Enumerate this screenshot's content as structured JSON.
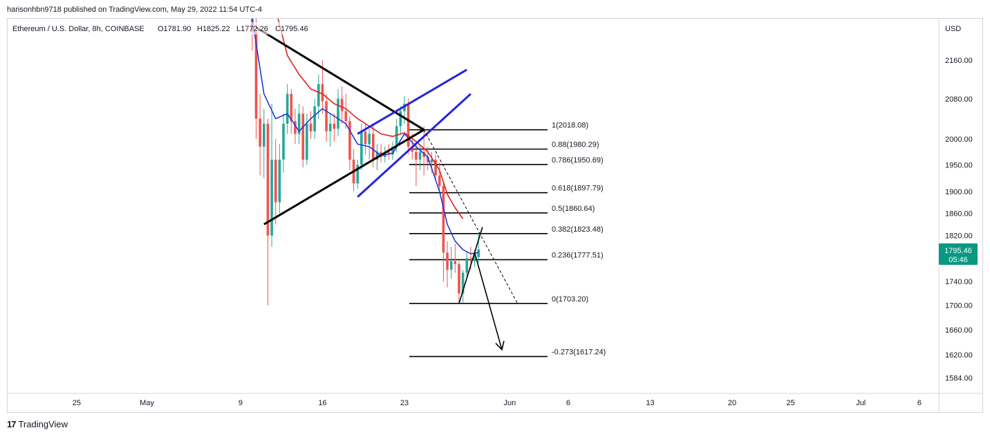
{
  "header": {
    "published_line": "harisonhbn9718 published on TradingView.com, May 29, 2022 11:54 UTC-4"
  },
  "footer": {
    "logo_text": "TradingView"
  },
  "colors": {
    "up_candle": "#26a69a",
    "down_candle": "#ef5350",
    "price_badge": "#089981",
    "ema_fast": "#1e3bd6",
    "ema_slow": "#e01f1f",
    "triangle": "#000000",
    "channel": "#2424e0",
    "fib": "#000000"
  },
  "chart_data": {
    "type": "candlestick",
    "symbol_legend": {
      "name": "Ethereum / U.S. Dollar, 8h, COINBASE",
      "open": "O1781.90",
      "high": "H1825.22",
      "low": "L1772.26",
      "close": "C1795.46"
    },
    "currency_label": "USD",
    "y_axis": {
      "scale": "log",
      "range": [
        1560,
        2230
      ],
      "ticks": [
        "2160.00",
        "2080.00",
        "2000.00",
        "1950.00",
        "1900.00",
        "1860.00",
        "1820.00",
        "1740.00",
        "1700.00",
        "1660.00",
        "1620.00",
        "1584.00"
      ]
    },
    "x_axis": {
      "ticks": [
        {
          "label": "25",
          "date": "2022-04-25"
        },
        {
          "label": "May",
          "date": "2022-05-01"
        },
        {
          "label": "9",
          "date": "2022-05-09"
        },
        {
          "label": "16",
          "date": "2022-05-16"
        },
        {
          "label": "23",
          "date": "2022-05-23"
        },
        {
          "label": "Jun",
          "date": "2022-06-01"
        },
        {
          "label": "6",
          "date": "2022-06-06"
        },
        {
          "label": "13",
          "date": "2022-06-13"
        },
        {
          "label": "20",
          "date": "2022-06-20"
        },
        {
          "label": "25",
          "date": "2022-06-25"
        },
        {
          "label": "Jul",
          "date": "2022-07-01"
        },
        {
          "label": "6",
          "date": "2022-07-06"
        }
      ]
    },
    "last_price": {
      "value": "1795.46",
      "countdown": "05:46"
    },
    "candles": [
      {
        "t": "2022-05-10 00:00",
        "o": 2300,
        "h": 2450,
        "l": 2180,
        "c": 2220
      },
      {
        "t": "2022-05-10 08:00",
        "o": 2220,
        "h": 2250,
        "l": 2000,
        "c": 2040
      },
      {
        "t": "2022-05-10 16:00",
        "o": 2040,
        "h": 2090,
        "l": 1930,
        "c": 1985
      },
      {
        "t": "2022-05-11 00:00",
        "o": 1985,
        "h": 2060,
        "l": 1925,
        "c": 2030
      },
      {
        "t": "2022-05-11 08:00",
        "o": 2030,
        "h": 2040,
        "l": 1700,
        "c": 1820
      },
      {
        "t": "2022-05-11 16:00",
        "o": 1820,
        "h": 2070,
        "l": 1800,
        "c": 1960
      },
      {
        "t": "2022-05-12 00:00",
        "o": 1960,
        "h": 2000,
        "l": 1840,
        "c": 1880
      },
      {
        "t": "2022-05-12 08:00",
        "o": 1880,
        "h": 1990,
        "l": 1860,
        "c": 1960
      },
      {
        "t": "2022-05-12 16:00",
        "o": 1960,
        "h": 2050,
        "l": 1935,
        "c": 2030
      },
      {
        "t": "2022-05-13 00:00",
        "o": 2030,
        "h": 2110,
        "l": 2010,
        "c": 2090
      },
      {
        "t": "2022-05-13 08:00",
        "o": 2090,
        "h": 2100,
        "l": 2010,
        "c": 2035
      },
      {
        "t": "2022-05-13 16:00",
        "o": 2035,
        "h": 2060,
        "l": 1990,
        "c": 2010
      },
      {
        "t": "2022-05-14 00:00",
        "o": 2010,
        "h": 2070,
        "l": 1990,
        "c": 2050
      },
      {
        "t": "2022-05-14 08:00",
        "o": 2050,
        "h": 2065,
        "l": 1945,
        "c": 1960
      },
      {
        "t": "2022-05-14 16:00",
        "o": 1960,
        "h": 2050,
        "l": 1950,
        "c": 2030
      },
      {
        "t": "2022-05-15 00:00",
        "o": 2030,
        "h": 2055,
        "l": 2000,
        "c": 2015
      },
      {
        "t": "2022-05-15 08:00",
        "o": 2015,
        "h": 2080,
        "l": 2000,
        "c": 2065
      },
      {
        "t": "2022-05-15 16:00",
        "o": 2065,
        "h": 2130,
        "l": 2040,
        "c": 2110
      },
      {
        "t": "2022-05-16 00:00",
        "o": 2110,
        "h": 2160,
        "l": 2050,
        "c": 2075
      },
      {
        "t": "2022-05-16 08:00",
        "o": 2075,
        "h": 2090,
        "l": 1995,
        "c": 2015
      },
      {
        "t": "2022-05-16 16:00",
        "o": 2015,
        "h": 2050,
        "l": 1985,
        "c": 2030
      },
      {
        "t": "2022-05-17 00:00",
        "o": 2030,
        "h": 2050,
        "l": 1995,
        "c": 2020
      },
      {
        "t": "2022-05-17 08:00",
        "o": 2020,
        "h": 2100,
        "l": 2005,
        "c": 2080
      },
      {
        "t": "2022-05-17 16:00",
        "o": 2080,
        "h": 2105,
        "l": 2030,
        "c": 2055
      },
      {
        "t": "2022-05-18 00:00",
        "o": 2055,
        "h": 2090,
        "l": 2020,
        "c": 2035
      },
      {
        "t": "2022-05-18 08:00",
        "o": 2035,
        "h": 2045,
        "l": 1940,
        "c": 1960
      },
      {
        "t": "2022-05-18 16:00",
        "o": 1960,
        "h": 1980,
        "l": 1900,
        "c": 1915
      },
      {
        "t": "2022-05-19 00:00",
        "o": 1915,
        "h": 1960,
        "l": 1905,
        "c": 1950
      },
      {
        "t": "2022-05-19 08:00",
        "o": 1950,
        "h": 2030,
        "l": 1940,
        "c": 2015
      },
      {
        "t": "2022-05-19 16:00",
        "o": 2015,
        "h": 2030,
        "l": 1970,
        "c": 1990
      },
      {
        "t": "2022-05-20 00:00",
        "o": 1990,
        "h": 2020,
        "l": 1960,
        "c": 2010
      },
      {
        "t": "2022-05-20 08:00",
        "o": 2010,
        "h": 2030,
        "l": 1945,
        "c": 1960
      },
      {
        "t": "2022-05-20 16:00",
        "o": 1960,
        "h": 1990,
        "l": 1940,
        "c": 1975
      },
      {
        "t": "2022-05-21 00:00",
        "o": 1975,
        "h": 1990,
        "l": 1955,
        "c": 1965
      },
      {
        "t": "2022-05-21 08:00",
        "o": 1965,
        "h": 1985,
        "l": 1955,
        "c": 1975
      },
      {
        "t": "2022-05-21 16:00",
        "o": 1975,
        "h": 1990,
        "l": 1960,
        "c": 1970
      },
      {
        "t": "2022-05-22 00:00",
        "o": 1970,
        "h": 1995,
        "l": 1960,
        "c": 1985
      },
      {
        "t": "2022-05-22 08:00",
        "o": 1985,
        "h": 2040,
        "l": 1975,
        "c": 2025
      },
      {
        "t": "2022-05-22 16:00",
        "o": 2025,
        "h": 2065,
        "l": 2010,
        "c": 2055
      },
      {
        "t": "2022-05-23 00:00",
        "o": 2055,
        "h": 2085,
        "l": 2030,
        "c": 2070
      },
      {
        "t": "2022-05-23 08:00",
        "o": 2070,
        "h": 2080,
        "l": 1970,
        "c": 1985
      },
      {
        "t": "2022-05-23 16:00",
        "o": 1985,
        "h": 2010,
        "l": 1960,
        "c": 1975
      },
      {
        "t": "2022-05-24 00:00",
        "o": 1975,
        "h": 1990,
        "l": 1910,
        "c": 1960
      },
      {
        "t": "2022-05-24 08:00",
        "o": 1960,
        "h": 1990,
        "l": 1940,
        "c": 1975
      },
      {
        "t": "2022-05-24 16:00",
        "o": 1975,
        "h": 2025,
        "l": 1930,
        "c": 1965
      },
      {
        "t": "2022-05-25 00:00",
        "o": 1965,
        "h": 1985,
        "l": 1940,
        "c": 1955
      },
      {
        "t": "2022-05-25 08:00",
        "o": 1955,
        "h": 1975,
        "l": 1935,
        "c": 1960
      },
      {
        "t": "2022-05-25 16:00",
        "o": 1960,
        "h": 1970,
        "l": 1920,
        "c": 1930
      },
      {
        "t": "2022-05-26 00:00",
        "o": 1930,
        "h": 1955,
        "l": 1900,
        "c": 1910
      },
      {
        "t": "2022-05-26 08:00",
        "o": 1910,
        "h": 1920,
        "l": 1740,
        "c": 1790
      },
      {
        "t": "2022-05-26 16:00",
        "o": 1790,
        "h": 1810,
        "l": 1730,
        "c": 1760
      },
      {
        "t": "2022-05-27 00:00",
        "o": 1760,
        "h": 1800,
        "l": 1745,
        "c": 1775
      },
      {
        "t": "2022-05-27 08:00",
        "o": 1775,
        "h": 1805,
        "l": 1755,
        "c": 1770
      },
      {
        "t": "2022-05-27 16:00",
        "o": 1770,
        "h": 1775,
        "l": 1705,
        "c": 1720
      },
      {
        "t": "2022-05-28 00:00",
        "o": 1720,
        "h": 1760,
        "l": 1705,
        "c": 1755
      },
      {
        "t": "2022-05-28 08:00",
        "o": 1755,
        "h": 1790,
        "l": 1745,
        "c": 1780
      },
      {
        "t": "2022-05-28 16:00",
        "o": 1780,
        "h": 1800,
        "l": 1760,
        "c": 1775
      },
      {
        "t": "2022-05-29 00:00",
        "o": 1775,
        "h": 1795,
        "l": 1765,
        "c": 1790
      },
      {
        "t": "2022-05-29 08:00",
        "o": 1781.9,
        "h": 1825.22,
        "l": 1772.26,
        "c": 1795.46
      }
    ],
    "moving_averages": [
      {
        "color": "#1e3bd6",
        "points": [
          {
            "t": "2022-05-10 00:00",
            "v": 2250
          },
          {
            "t": "2022-05-11 00:00",
            "v": 2090
          },
          {
            "t": "2022-05-12 00:00",
            "v": 2040
          },
          {
            "t": "2022-05-13 00:00",
            "v": 2050
          },
          {
            "t": "2022-05-14 00:00",
            "v": 2015
          },
          {
            "t": "2022-05-15 00:00",
            "v": 2040
          },
          {
            "t": "2022-05-16 00:00",
            "v": 2060
          },
          {
            "t": "2022-05-17 00:00",
            "v": 2045
          },
          {
            "t": "2022-05-18 00:00",
            "v": 2030
          },
          {
            "t": "2022-05-19 00:00",
            "v": 1990
          },
          {
            "t": "2022-05-20 00:00",
            "v": 1985
          },
          {
            "t": "2022-05-21 00:00",
            "v": 1968
          },
          {
            "t": "2022-05-22 00:00",
            "v": 1972
          },
          {
            "t": "2022-05-23 00:00",
            "v": 2010
          },
          {
            "t": "2022-05-24 00:00",
            "v": 1985
          },
          {
            "t": "2022-05-25 00:00",
            "v": 1965
          },
          {
            "t": "2022-05-26 00:00",
            "v": 1900
          },
          {
            "t": "2022-05-26 16:00",
            "v": 1840
          },
          {
            "t": "2022-05-27 08:00",
            "v": 1810
          },
          {
            "t": "2022-05-28 00:00",
            "v": 1795
          },
          {
            "t": "2022-05-28 16:00",
            "v": 1788
          },
          {
            "t": "2022-05-29 08:00",
            "v": 1790
          }
        ]
      },
      {
        "color": "#e01f1f",
        "points": [
          {
            "t": "2022-05-11 00:00",
            "v": 2440
          },
          {
            "t": "2022-05-12 00:00",
            "v": 2270
          },
          {
            "t": "2022-05-13 00:00",
            "v": 2170
          },
          {
            "t": "2022-05-14 00:00",
            "v": 2130
          },
          {
            "t": "2022-05-15 00:00",
            "v": 2100
          },
          {
            "t": "2022-05-16 00:00",
            "v": 2090
          },
          {
            "t": "2022-05-17 00:00",
            "v": 2070
          },
          {
            "t": "2022-05-18 00:00",
            "v": 2060
          },
          {
            "t": "2022-05-19 00:00",
            "v": 2040
          },
          {
            "t": "2022-05-20 00:00",
            "v": 2025
          },
          {
            "t": "2022-05-21 00:00",
            "v": 2010
          },
          {
            "t": "2022-05-22 00:00",
            "v": 2005
          },
          {
            "t": "2022-05-23 00:00",
            "v": 2012
          },
          {
            "t": "2022-05-24 00:00",
            "v": 1995
          },
          {
            "t": "2022-05-25 00:00",
            "v": 1975
          },
          {
            "t": "2022-05-26 00:00",
            "v": 1940
          },
          {
            "t": "2022-05-26 16:00",
            "v": 1895
          },
          {
            "t": "2022-05-27 08:00",
            "v": 1870
          },
          {
            "t": "2022-05-28 00:00",
            "v": 1850
          }
        ]
      }
    ],
    "fibonacci": {
      "levels": [
        {
          "ratio": 1,
          "price": 2018.08,
          "label": "1(2018.08)"
        },
        {
          "ratio": 0.88,
          "price": 1980.29,
          "label": "0.88(1980.29)"
        },
        {
          "ratio": 0.786,
          "price": 1950.69,
          "label": "0.786(1950.69)"
        },
        {
          "ratio": 0.618,
          "price": 1897.79,
          "label": "0.618(1897.79)"
        },
        {
          "ratio": 0.5,
          "price": 1860.64,
          "label": "0.5(1860.64)"
        },
        {
          "ratio": 0.382,
          "price": 1823.48,
          "label": "0.382(1823.48)"
        },
        {
          "ratio": 0.236,
          "price": 1777.51,
          "label": "0.236(1777.51)"
        },
        {
          "ratio": 0,
          "price": 1703.2,
          "label": "0(1703.20)"
        },
        {
          "ratio": -0.273,
          "price": 1617.24,
          "label": "-0.273(1617.24)"
        }
      ]
    },
    "drawings": {
      "triangle": [
        [
          {
            "t": "2022-05-10 08:00",
            "p": 2230
          },
          {
            "t": "2022-05-24 16:00",
            "p": 2018
          }
        ],
        [
          {
            "t": "2022-05-11 00:00",
            "p": 1840
          },
          {
            "t": "2022-05-24 16:00",
            "p": 2018
          }
        ]
      ],
      "channel": [
        [
          {
            "t": "2022-05-19 00:00",
            "p": 2010
          },
          {
            "t": "2022-05-28 08:00",
            "p": 2140
          }
        ],
        [
          {
            "t": "2022-05-19 00:00",
            "p": 1890
          },
          {
            "t": "2022-05-28 16:00",
            "p": 2090
          }
        ]
      ],
      "projection": [
        {
          "t": "2022-05-24 16:00",
          "p": 2018
        },
        {
          "t": "2022-06-01 16:00",
          "p": 1703.2
        }
      ],
      "arrow_path": [
        {
          "t": "2022-05-27 16:00",
          "p": 1703.2
        },
        {
          "t": "2022-05-29 16:00",
          "p": 1835
        },
        {
          "t": "2022-05-29 00:00",
          "p": 1790
        },
        {
          "t": "2022-05-31 08:00",
          "p": 1628
        }
      ]
    }
  }
}
